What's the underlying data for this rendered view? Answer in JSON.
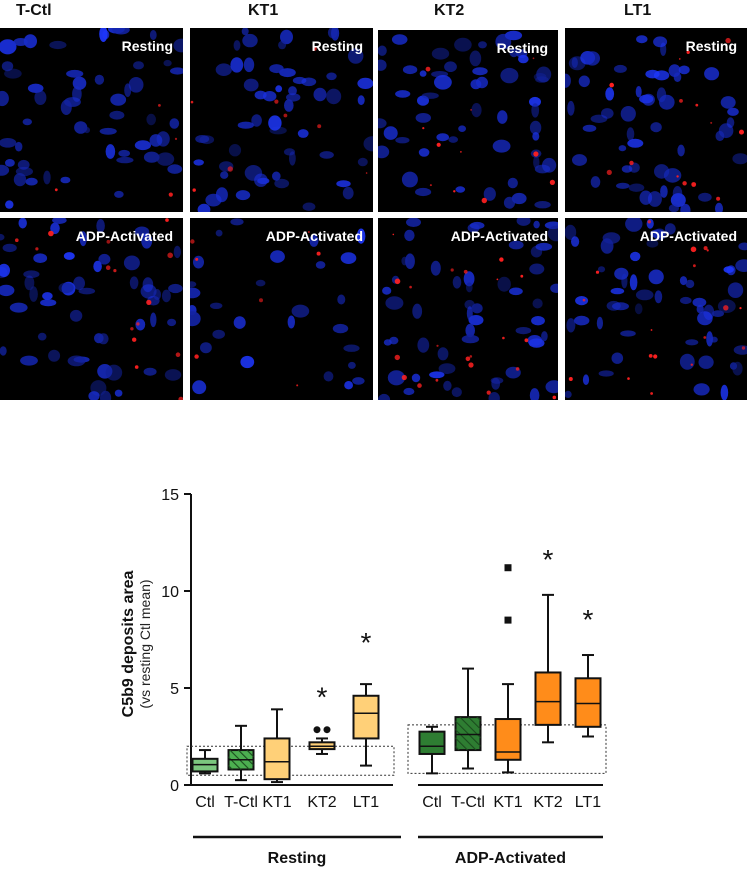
{
  "columns": [
    {
      "title": "T-Ctl",
      "title_x": 16
    },
    {
      "title": "KT1",
      "title_x": 248
    },
    {
      "title": "KT2",
      "title_x": 434
    },
    {
      "title": "LT1",
      "title_x": 624
    }
  ],
  "panel_labels": {
    "resting": "Resting",
    "activated": "ADP-Activated"
  },
  "colors": {
    "ctl": "#2e7d32",
    "tctl": "#2e7d32",
    "kt1": "#ff9c3a",
    "kt2": "#ffc44d",
    "lt1": "#ffcc66",
    "nuclei": "#1f3dff",
    "deposits": "#ff1a1a"
  },
  "chart_data": {
    "type": "box",
    "ylabel": "C5b9 deposits area",
    "ylabel_sub": "(vs resting Ctl mean)",
    "ylim": [
      0,
      15
    ],
    "yticks": [
      0,
      5,
      10,
      15
    ],
    "groups": [
      {
        "name": "Resting",
        "boxes": [
          {
            "label": "Ctl",
            "min": 0.6,
            "q1": 0.7,
            "median": 1.05,
            "q3": 1.35,
            "max": 1.8,
            "color": "#7bc67e",
            "hatch": false,
            "outliers": [],
            "star": false
          },
          {
            "label": "T-Ctl",
            "min": 0.25,
            "q1": 0.8,
            "median": 1.3,
            "q3": 1.8,
            "max": 3.05,
            "color": "#4caf50",
            "hatch": true,
            "outliers": [],
            "star": false
          },
          {
            "label": "KT1",
            "min": 0.15,
            "q1": 0.3,
            "median": 1.2,
            "q3": 2.4,
            "max": 3.9,
            "color": "#ffd078",
            "hatch": false,
            "outliers": [],
            "star": false
          },
          {
            "label": "KT2",
            "min": 1.6,
            "q1": 1.85,
            "median": 2.0,
            "q3": 2.2,
            "max": 2.4,
            "color": "#ffd078",
            "hatch": false,
            "outliers": [
              2.85,
              2.85
            ],
            "star": true
          },
          {
            "label": "LT1",
            "min": 1.0,
            "q1": 2.4,
            "median": 3.7,
            "q3": 4.6,
            "max": 5.2,
            "color": "#ffd078",
            "hatch": false,
            "outliers": [],
            "star": true
          }
        ]
      },
      {
        "name": "ADP-Activated",
        "boxes": [
          {
            "label": "Ctl",
            "min": 0.6,
            "q1": 1.6,
            "median": 2.0,
            "q3": 2.75,
            "max": 3.0,
            "color": "#2e7d32",
            "hatch": false,
            "outliers": [],
            "star": false
          },
          {
            "label": "T-Ctl",
            "min": 0.85,
            "q1": 1.8,
            "median": 2.6,
            "q3": 3.5,
            "max": 6.0,
            "color": "#2e7d32",
            "hatch": true,
            "outliers": [],
            "star": false
          },
          {
            "label": "KT1",
            "min": 0.65,
            "q1": 1.3,
            "median": 1.7,
            "q3": 3.4,
            "max": 5.2,
            "color": "#ff8c1a",
            "hatch": false,
            "outliers": [
              8.5,
              11.2
            ],
            "star": false
          },
          {
            "label": "KT2",
            "min": 2.2,
            "q1": 3.1,
            "median": 4.3,
            "q3": 5.8,
            "max": 9.8,
            "color": "#ff8c1a",
            "hatch": false,
            "outliers": [],
            "star": true
          },
          {
            "label": "LT1",
            "min": 2.5,
            "q1": 3.0,
            "median": 4.2,
            "q3": 5.5,
            "max": 6.7,
            "color": "#ff8c1a",
            "hatch": false,
            "outliers": [],
            "star": true
          }
        ]
      }
    ],
    "reference_boxes": [
      {
        "group": "Resting",
        "y_low": 0.5,
        "y_high": 2.0
      },
      {
        "group": "ADP-Activated",
        "y_low": 0.6,
        "y_high": 3.1
      }
    ],
    "significance_marker": "*",
    "grid": false,
    "legend": "none"
  }
}
